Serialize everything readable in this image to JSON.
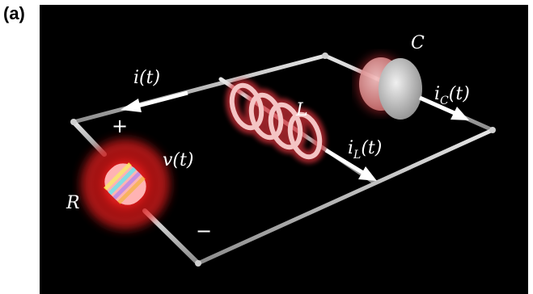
{
  "panel_label": "(a)",
  "labels": {
    "current_total": "i(t)",
    "voltage": "v(t)",
    "resistor": "R",
    "inductor": "L",
    "capacitor": "C",
    "inductor_current_main": "i",
    "inductor_current_sub": "L",
    "inductor_current_arg": "(t)",
    "capacitor_current_main": "i",
    "capacitor_current_sub": "C",
    "capacitor_current_arg": "(t)",
    "plus": "+",
    "minus": "−"
  },
  "colors": {
    "background": "#000000",
    "wire": "#c9c9c9",
    "arrow": "#ffffff",
    "glow": "#e8232a",
    "inductor_coil": "#f2b8b8",
    "capacitor_plate": "#d9d9d9"
  }
}
